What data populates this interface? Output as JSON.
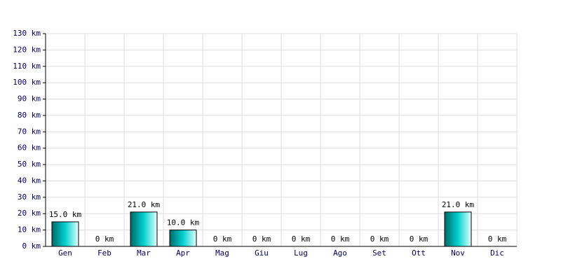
{
  "chart_data": {
    "type": "bar",
    "categories": [
      "Gen",
      "Feb",
      "Mar",
      "Apr",
      "Mag",
      "Giu",
      "Lug",
      "Ago",
      "Set",
      "Ott",
      "Nov",
      "Dic"
    ],
    "values": [
      15,
      0,
      21,
      10,
      0,
      0,
      0,
      0,
      0,
      0,
      21,
      0
    ],
    "value_labels": [
      "15.0 km",
      "0 km",
      "21.0 km",
      "10.0 km",
      "0 km",
      "0 km",
      "0 km",
      "0 km",
      "0 km",
      "0 km",
      "21.0 km",
      "0 km"
    ],
    "color": "#00d0d0",
    "ylim": [
      0,
      130
    ],
    "yticks": [
      {
        "value": 0,
        "label": "0 km"
      },
      {
        "value": 10,
        "label": "10 km"
      },
      {
        "value": 20,
        "label": "20 km"
      },
      {
        "value": 30,
        "label": "30 km"
      },
      {
        "value": 40,
        "label": "40 km"
      },
      {
        "value": 50,
        "label": "50 km"
      },
      {
        "value": 60,
        "label": "60 km"
      },
      {
        "value": 70,
        "label": "70 km"
      },
      {
        "value": 80,
        "label": "80 km"
      },
      {
        "value": 90,
        "label": "90 km"
      },
      {
        "value": 100,
        "label": "100 km"
      },
      {
        "value": 110,
        "label": "110 km"
      },
      {
        "value": 120,
        "label": "120 km"
      },
      {
        "value": 130,
        "label": "130 km"
      }
    ],
    "grid": true
  }
}
